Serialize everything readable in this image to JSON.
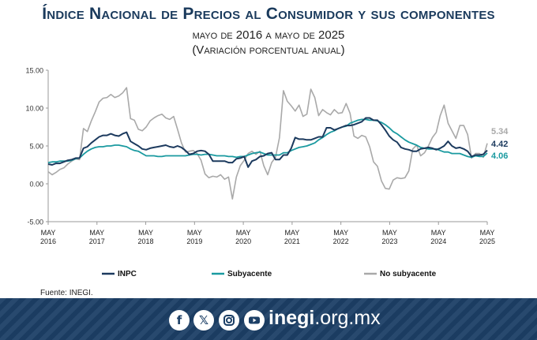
{
  "header": {
    "title": "Índice Nacional de Precios al Consumidor y sus componentes",
    "subtitle_line1": "mayo de 2016 a mayo de 2025",
    "subtitle_line2": "(Variación porcentual anual)"
  },
  "colors": {
    "inpc": "#1c3a5e",
    "subyacente": "#1a9aa0",
    "no_subyacente": "#a9a9a9",
    "footer": "#1c3f66"
  },
  "chart_data": {
    "type": "line",
    "ylim": [
      -5,
      15
    ],
    "yticks": [
      "15.00",
      "10.00",
      "5.00",
      "0.00",
      "-5.00"
    ],
    "xtick_labels": [
      {
        "month": "MAY",
        "year": "2016"
      },
      {
        "month": "MAY",
        "year": "2017"
      },
      {
        "month": "MAY",
        "year": "2018"
      },
      {
        "month": "MAY",
        "year": "2019"
      },
      {
        "month": "MAY",
        "year": "2020"
      },
      {
        "month": "MAY",
        "year": "2021"
      },
      {
        "month": "MAY",
        "year": "2022"
      },
      {
        "month": "MAY",
        "year": "2023"
      },
      {
        "month": "MAY",
        "year": "2024"
      },
      {
        "month": "MAY",
        "year": "2025"
      }
    ],
    "x_start": "2016-05",
    "x_end": "2025-05",
    "legend_position": "bottom",
    "grid": false,
    "series": [
      {
        "key": "no_subyacente",
        "name": "No subyacente",
        "color": "#a9a9a9",
        "end_label": "5.34",
        "values": [
          1.6,
          1.2,
          1.5,
          1.9,
          2.1,
          2.6,
          3.0,
          3.3,
          3.2,
          7.3,
          6.9,
          8.3,
          9.5,
          10.8,
          11.3,
          11.4,
          11.8,
          11.4,
          11.6,
          12.0,
          12.7,
          8.6,
          8.4,
          7.2,
          7.0,
          7.5,
          8.3,
          8.7,
          9.0,
          9.2,
          8.7,
          8.5,
          8.9,
          7.2,
          5.4,
          4.2,
          4.3,
          4.4,
          4.0,
          3.1,
          1.3,
          0.8,
          1.0,
          0.9,
          1.2,
          0.6,
          0.9,
          -2.0,
          0.9,
          2.4,
          3.1,
          4.0,
          4.3,
          3.9,
          4.3,
          2.4,
          1.2,
          2.8,
          3.5,
          6.1,
          12.3,
          10.9,
          10.3,
          9.6,
          10.4,
          8.9,
          9.2,
          12.5,
          11.4,
          9.0,
          9.8,
          9.4,
          9.1,
          9.8,
          9.3,
          9.4,
          10.6,
          9.3,
          6.3,
          6.0,
          6.4,
          6.2,
          4.9,
          2.9,
          2.3,
          0.4,
          -0.6,
          -0.7,
          0.5,
          0.8,
          0.7,
          0.8,
          1.7,
          4.6,
          5.1,
          3.7,
          4.1,
          5.0,
          6.1,
          6.8,
          9.0,
          10.4,
          8.0,
          7.0,
          6.0,
          7.7,
          7.7,
          6.5,
          3.4,
          4.0,
          4.0,
          3.5,
          5.34
        ]
      },
      {
        "key": "subyacente",
        "name": "Subyacente",
        "color": "#1a9aa0",
        "end_label": "4.06",
        "values": [
          2.8,
          2.9,
          2.9,
          3.0,
          3.0,
          3.0,
          3.1,
          3.3,
          3.4,
          3.9,
          4.3,
          4.6,
          4.8,
          4.9,
          4.9,
          5.0,
          5.0,
          5.1,
          5.1,
          5.0,
          4.9,
          4.6,
          4.4,
          4.3,
          4.0,
          3.7,
          3.7,
          3.7,
          3.6,
          3.6,
          3.7,
          3.7,
          3.7,
          3.7,
          3.7,
          3.7,
          3.8,
          3.9,
          3.9,
          3.8,
          3.9,
          3.9,
          3.8,
          3.7,
          3.7,
          3.7,
          3.6,
          3.6,
          3.5,
          3.6,
          3.6,
          3.8,
          4.0,
          4.1,
          4.2,
          4.0,
          3.8,
          3.8,
          3.8,
          3.8,
          4.1,
          4.1,
          4.4,
          4.6,
          4.8,
          4.9,
          5.0,
          5.2,
          5.4,
          5.8,
          6.1,
          6.5,
          6.8,
          7.0,
          7.3,
          7.5,
          7.6,
          8.0,
          8.2,
          8.4,
          8.5,
          8.5,
          8.4,
          8.4,
          8.3,
          8.1,
          7.8,
          7.4,
          6.9,
          6.6,
          6.2,
          5.8,
          5.5,
          5.3,
          5.1,
          4.8,
          4.7,
          4.6,
          4.6,
          4.6,
          4.4,
          4.2,
          4.2,
          4.0,
          4.0,
          4.0,
          3.8,
          3.6,
          3.5,
          3.7,
          3.6,
          3.6,
          4.06
        ]
      },
      {
        "key": "inpc",
        "name": "INPC",
        "color": "#1c3a5e",
        "end_label": "4.42",
        "values": [
          2.6,
          2.5,
          2.7,
          2.7,
          2.9,
          3.1,
          3.2,
          3.4,
          3.4,
          4.7,
          4.9,
          5.4,
          5.8,
          6.2,
          6.4,
          6.4,
          6.6,
          6.4,
          6.3,
          6.6,
          6.8,
          5.6,
          5.3,
          5.0,
          4.6,
          4.5,
          4.7,
          4.8,
          4.9,
          5.0,
          5.1,
          4.9,
          4.8,
          5.0,
          4.8,
          4.4,
          3.9,
          4.0,
          4.3,
          4.4,
          4.3,
          3.9,
          3.0,
          3.0,
          3.0,
          3.0,
          2.8,
          2.8,
          3.3,
          3.4,
          3.6,
          2.2,
          3.0,
          3.2,
          3.6,
          3.7,
          4.0,
          4.1,
          3.2,
          3.2,
          3.8,
          3.8,
          4.7,
          6.1,
          5.9,
          5.9,
          5.8,
          5.8,
          6.0,
          6.2,
          6.2,
          7.4,
          7.4,
          7.1,
          7.3,
          7.5,
          7.7,
          7.7,
          7.8,
          8.0,
          8.2,
          8.7,
          8.7,
          8.4,
          8.4,
          7.8,
          7.1,
          6.3,
          5.8,
          5.5,
          4.8,
          4.6,
          4.5,
          4.3,
          4.3,
          4.6,
          4.7,
          4.8,
          4.7,
          4.5,
          4.7,
          5.0,
          5.6,
          5.0,
          4.7,
          4.8,
          4.6,
          4.3,
          3.6,
          3.8,
          3.8,
          3.9,
          4.42
        ]
      }
    ],
    "legend": [
      {
        "key": "inpc",
        "label": "INPC"
      },
      {
        "key": "subyacente",
        "label": "Subyacente"
      },
      {
        "key": "no_subyacente",
        "label": "No subyacente"
      }
    ]
  },
  "footer": {
    "source": "Fuente: INEGI.",
    "social_icons": [
      "facebook-icon",
      "x-icon",
      "instagram-icon",
      "youtube-icon"
    ],
    "site_bold": "inegi",
    "site_rest": ".org.mx"
  }
}
